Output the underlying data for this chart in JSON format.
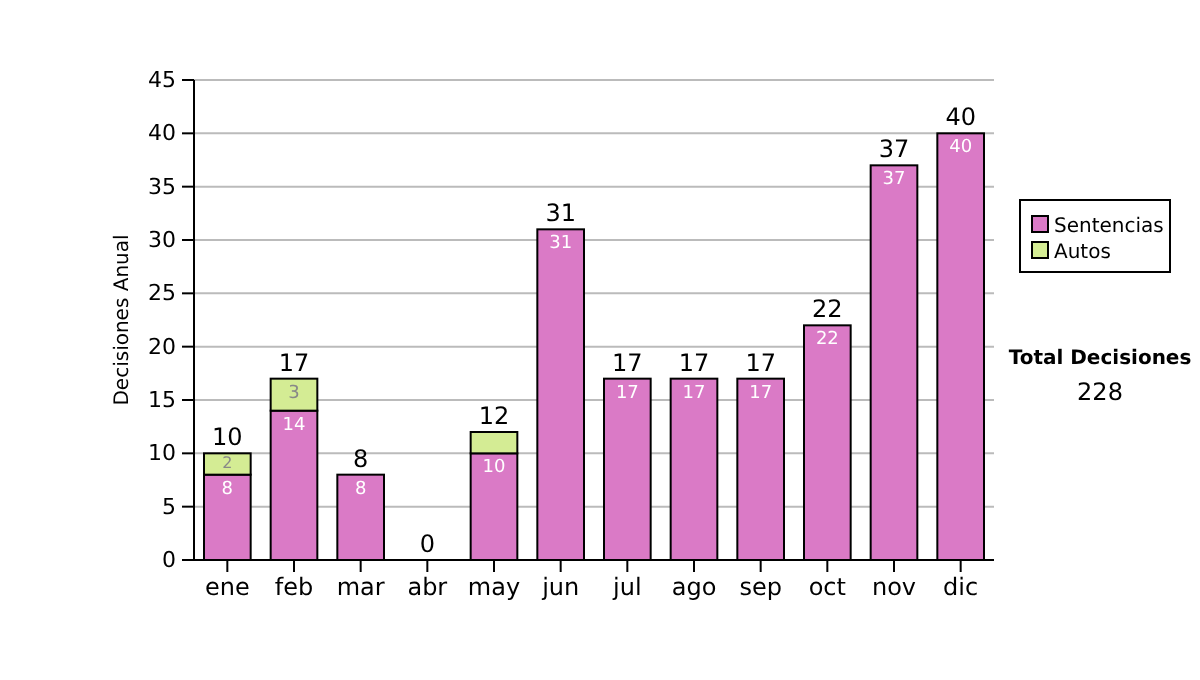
{
  "chart_data": {
    "type": "bar",
    "stacked": true,
    "ylabel": "Decisiones Anual",
    "categories": [
      "ene",
      "feb",
      "mar",
      "abr",
      "may",
      "jun",
      "jul",
      "ago",
      "sep",
      "oct",
      "nov",
      "dic"
    ],
    "series": [
      {
        "name": "Sentencias",
        "color": "#da7ac6",
        "values": [
          8,
          14,
          8,
          0,
          10,
          31,
          17,
          17,
          17,
          22,
          37,
          40
        ],
        "value_labels": [
          "8",
          "14",
          "8",
          null,
          "10",
          "31",
          "17",
          "17",
          "17",
          "22",
          "37",
          "40"
        ]
      },
      {
        "name": "Autos",
        "color": "#d4ec94",
        "values": [
          2,
          3,
          0,
          0,
          2,
          0,
          0,
          0,
          0,
          0,
          0,
          0
        ],
        "value_labels": [
          "2",
          "3",
          null,
          null,
          null,
          null,
          null,
          null,
          null,
          null,
          null,
          null
        ]
      }
    ],
    "totals": [
      "10",
      "17",
      "8",
      "0",
      "12",
      "31",
      "17",
      "17",
      "17",
      "22",
      "37",
      "40"
    ],
    "ylim": [
      0,
      45
    ],
    "yticks": [
      0,
      5,
      10,
      15,
      20,
      25,
      30,
      35,
      40,
      45
    ],
    "grid": "y",
    "legend": "right",
    "annotations": [
      "Total Decisiones",
      "228"
    ]
  }
}
